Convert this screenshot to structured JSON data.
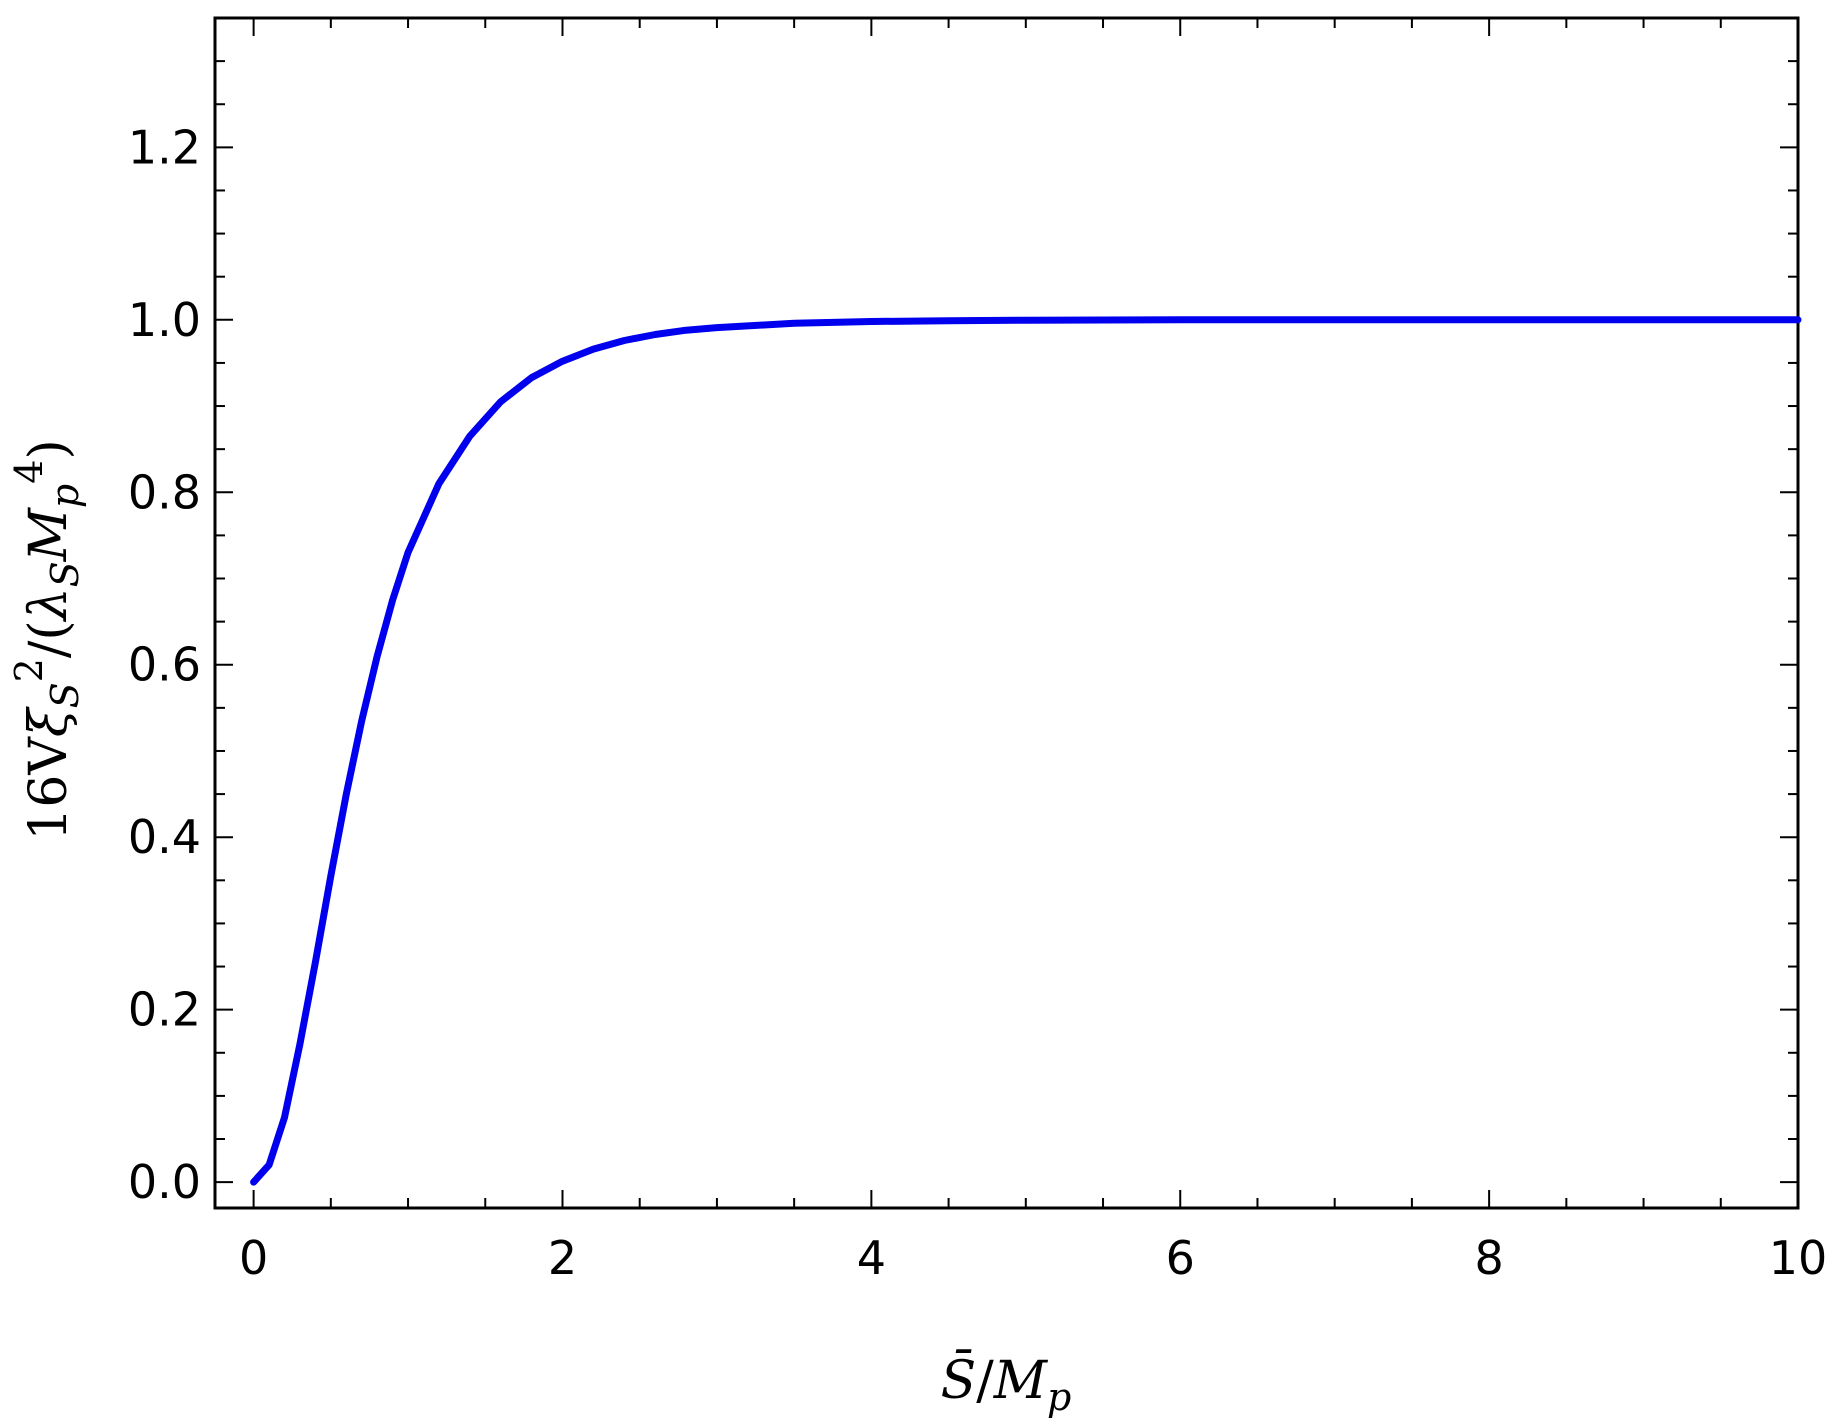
{
  "chart_data": {
    "type": "line",
    "title": "",
    "xlabel": "S̄/M_p",
    "ylabel": "16Vξ_S²/(λ_S M_p⁴)",
    "xlim": [
      -0.25,
      10
    ],
    "ylim": [
      -0.03,
      1.35
    ],
    "xticks": [
      0,
      2,
      4,
      6,
      8,
      10
    ],
    "xtick_labels": [
      "0",
      "2",
      "4",
      "6",
      "8",
      "10"
    ],
    "yticks": [
      0.0,
      0.2,
      0.4,
      0.6,
      0.8,
      1.0,
      1.2
    ],
    "ytick_labels": [
      "0.0",
      "0.2",
      "0.4",
      "0.6",
      "0.8",
      "1.0",
      "1.2"
    ],
    "grid": false,
    "series": [
      {
        "color": "#0000ee",
        "x": [
          0,
          0.1,
          0.2,
          0.3,
          0.4,
          0.5,
          0.6,
          0.7,
          0.8,
          0.9,
          1.0,
          1.2,
          1.4,
          1.6,
          1.8,
          2.0,
          2.2,
          2.4,
          2.6,
          2.8,
          3.0,
          3.5,
          4.0,
          4.5,
          5.0,
          6.0,
          7.0,
          8.0,
          9.0,
          10.0
        ],
        "y": [
          0.0,
          0.02,
          0.075,
          0.16,
          0.255,
          0.355,
          0.45,
          0.535,
          0.61,
          0.675,
          0.73,
          0.81,
          0.865,
          0.905,
          0.933,
          0.952,
          0.966,
          0.976,
          0.983,
          0.988,
          0.991,
          0.996,
          0.998,
          0.999,
          0.9995,
          1.0,
          1.0,
          1.0,
          1.0,
          1.0
        ]
      }
    ]
  }
}
